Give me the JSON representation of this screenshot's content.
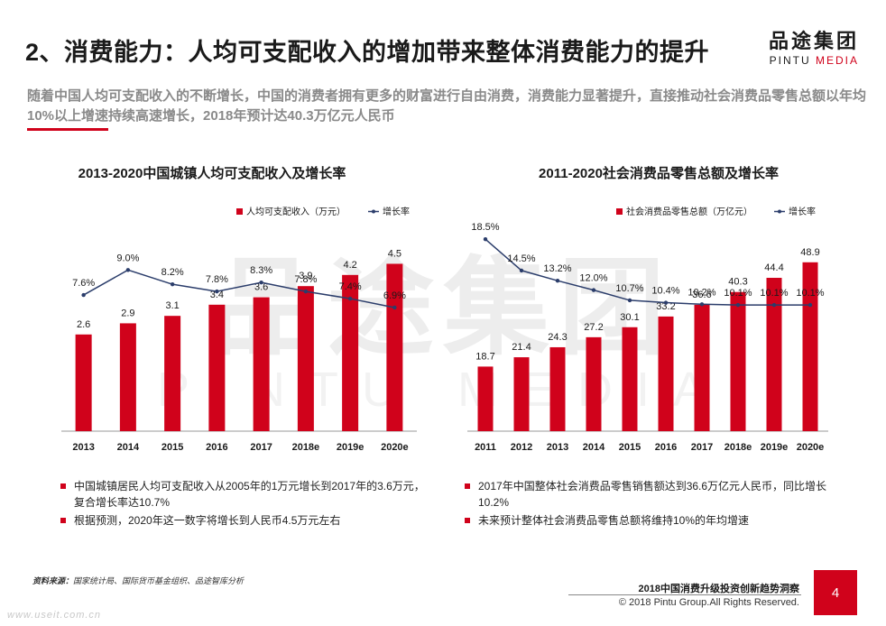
{
  "header": {
    "title": "2、消费能力：人均可支配收入的增加带来整体消费能力的提升",
    "subtitle": "随着中国人均可支配收入的不断增长，中国的消费者拥有更多的财富进行自由消费，消费能力显著提升，直接推动社会消费品零售总额以年均10%以上增速持续高速增长，2018年预计达40.3万亿元人民币"
  },
  "logo": {
    "cn": "品途集团",
    "en_left": "PINTU ",
    "en_right": "MEDIA"
  },
  "watermark": {
    "cn": "品途集团",
    "en": "PINTU MEDIA"
  },
  "colors": {
    "accent": "#d0021b",
    "line": "#2b3d6b",
    "axis": "#999999",
    "text": "#1a1a1a"
  },
  "chart_data": [
    {
      "type": "bar",
      "title": "2013-2020中国城镇人均可支配收入及增长率",
      "categories": [
        "2013",
        "2014",
        "2015",
        "2016",
        "2017",
        "2018e",
        "2019e",
        "2020e"
      ],
      "series": [
        {
          "name": "人均可支配收入（万元）",
          "type": "bar",
          "values": [
            2.6,
            2.9,
            3.1,
            3.4,
            3.6,
            3.9,
            4.2,
            4.5
          ],
          "labels": [
            "2.6",
            "2.9",
            "3.1",
            "3.4",
            "3.6",
            "3.9",
            "4.2",
            "4.5"
          ]
        },
        {
          "name": "增长率",
          "type": "line",
          "values": [
            7.6,
            9.0,
            8.2,
            7.8,
            8.3,
            7.8,
            7.4,
            6.9
          ],
          "labels": [
            "7.6%",
            "9.0%",
            "8.2%",
            "7.8%",
            "8.3%",
            "7.8%",
            "7.4%",
            "6.9%"
          ]
        }
      ],
      "ylim_bar": [
        0,
        6.5
      ],
      "ylim_line": [
        0,
        14
      ],
      "legend_position": "top-right"
    },
    {
      "type": "bar",
      "title": "2011-2020社会消费品零售总额及增长率",
      "categories": [
        "2011",
        "2012",
        "2013",
        "2014",
        "2015",
        "2016",
        "2017",
        "2018e",
        "2019e",
        "2020e"
      ],
      "series": [
        {
          "name": "社会消费品零售总额（万亿元）",
          "type": "bar",
          "values": [
            18.7,
            21.4,
            24.3,
            27.2,
            30.1,
            33.2,
            36.6,
            40.3,
            44.4,
            48.9
          ],
          "labels": [
            "18.7",
            "21.4",
            "24.3",
            "27.2",
            "30.1",
            "33.2",
            "36.6",
            "40.3",
            "44.4",
            "48.9"
          ]
        },
        {
          "name": "增长率",
          "type": "line",
          "values": [
            18.5,
            14.5,
            13.2,
            12.0,
            10.7,
            10.4,
            10.2,
            10.1,
            10.1,
            10.1
          ],
          "labels": [
            "18.5%",
            "14.5%",
            "13.2%",
            "12.0%",
            "10.7%",
            "10.4%",
            "10.2%",
            "10.1%",
            "10.1%",
            "10.1%"
          ]
        }
      ],
      "ylim_bar": [
        0,
        70
      ],
      "ylim_line": [
        -6,
        26
      ],
      "legend_position": "top-right"
    }
  ],
  "bullets_left": [
    "中国城镇居民人均可支配收入从2005年的1万元增长到2017年的3.6万元，复合增长率达10.7%",
    "根据预测，2020年这一数字将增长到人民币4.5万元左右"
  ],
  "bullets_right": [
    "2017年中国整体社会消费品零售销售额达到36.6万亿元人民币，同比增长10.2%",
    "未来预计整体社会消费品零售总额将维持10%的年均增速"
  ],
  "footer": {
    "source_label": "资料来源：",
    "source_text": "国家统计局、国际货币基金组织、品途智库分析",
    "report": "2018中国消费升级投资创新趋势洞察",
    "copyright": "© 2018 Pintu Group.All Rights Reserved.",
    "page": "4",
    "site": "www.useit.com.cn"
  }
}
